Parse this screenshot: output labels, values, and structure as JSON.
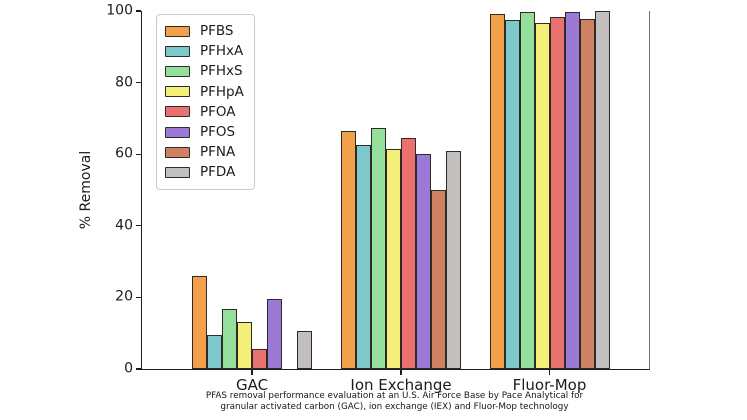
{
  "figure": {
    "ylabel": "% Removal",
    "caption_line1": "PFAS removal performance evaluation at an U.S. Air Force Base by Pace Analytical for",
    "caption_line2": "granular activated carbon (GAC), ion exchange (IEX) and Fluor-Mop technology"
  },
  "chart_data": {
    "type": "bar",
    "title": "",
    "xlabel": "",
    "ylabel": "% Removal",
    "ylim": [
      0,
      100
    ],
    "yticks": [
      0,
      20,
      40,
      60,
      80,
      100
    ],
    "grid": false,
    "legend_position": "upper left",
    "bar_edge_color": "#2e2a26",
    "categories": [
      "GAC",
      "Ion Exchange",
      "Fluor-Mop"
    ],
    "series": [
      {
        "name": "PFBS",
        "color": "#F2A14A",
        "values": [
          26.0,
          66.6,
          99.3
        ]
      },
      {
        "name": "PFHxA",
        "color": "#7CC8CB",
        "values": [
          9.4,
          62.6,
          97.5
        ]
      },
      {
        "name": "PFHxS",
        "color": "#94DF9C",
        "values": [
          16.7,
          67.3,
          99.6
        ]
      },
      {
        "name": "PFHpA",
        "color": "#F3EF79",
        "values": [
          13.0,
          61.5,
          96.6
        ]
      },
      {
        "name": "PFOA",
        "color": "#E97170",
        "values": [
          5.5,
          64.5,
          98.2
        ]
      },
      {
        "name": "PFOS",
        "color": "#9A7AD6",
        "values": [
          19.6,
          60.0,
          99.7
        ]
      },
      {
        "name": "PFNA",
        "color": "#CE8263",
        "values": [
          0,
          50.0,
          97.7
        ]
      },
      {
        "name": "PFDA",
        "color": "#C3BFBF",
        "values": [
          10.7,
          60.9,
          100
        ]
      }
    ]
  }
}
